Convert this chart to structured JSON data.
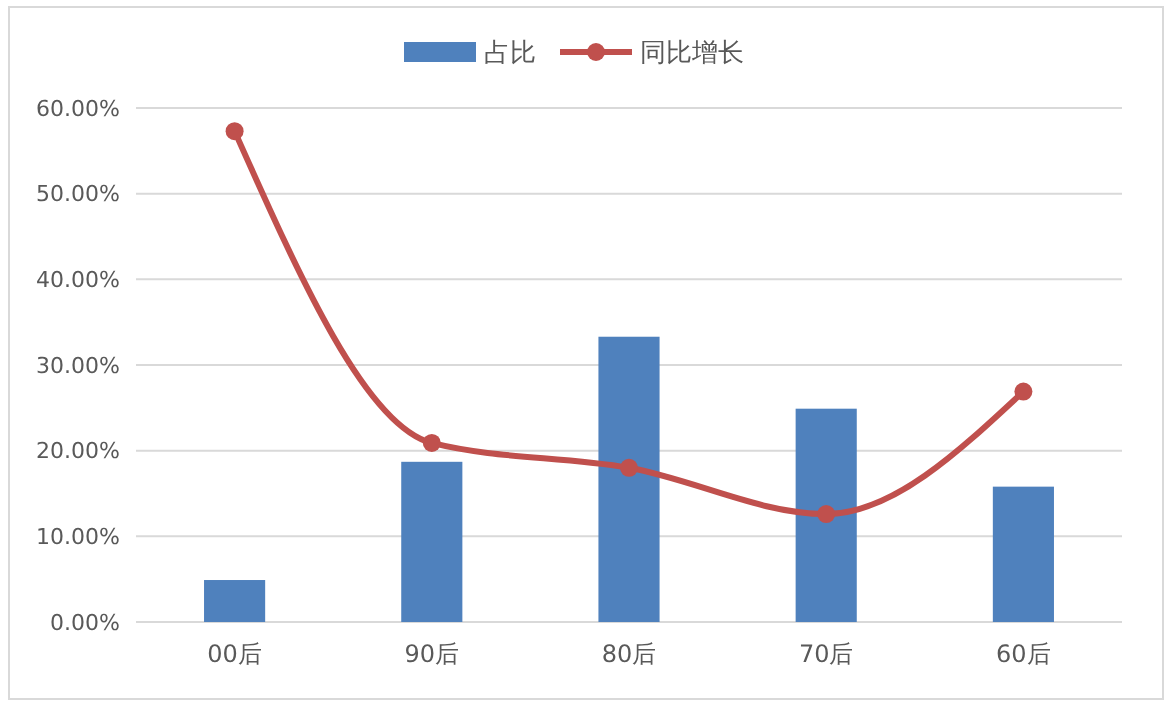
{
  "chart_data": {
    "type": "bar",
    "categories": [
      "00后",
      "90后",
      "80后",
      "70后",
      "60后"
    ],
    "series": [
      {
        "name": "占比",
        "color": "#4f81bd",
        "values": [
          4.9,
          18.7,
          33.3,
          24.9,
          15.8
        ]
      },
      {
        "name": "同比增长",
        "type": "line",
        "color": "#c0504d",
        "values": [
          57.3,
          20.9,
          18.0,
          12.6,
          26.9
        ],
        "marker": "circle",
        "line_style": "solid"
      }
    ],
    "ylim": [
      0,
      60
    ],
    "yticks": [
      {
        "value": 0,
        "label": "0.00%"
      },
      {
        "value": 10,
        "label": "10.00%"
      },
      {
        "value": 20,
        "label": "20.00%"
      },
      {
        "value": 30,
        "label": "30.00%"
      },
      {
        "value": 40,
        "label": "40.00%"
      },
      {
        "value": 50,
        "label": "50.00%"
      },
      {
        "value": 60,
        "label": "60.00%"
      }
    ],
    "grid": "y",
    "legend": "top"
  }
}
